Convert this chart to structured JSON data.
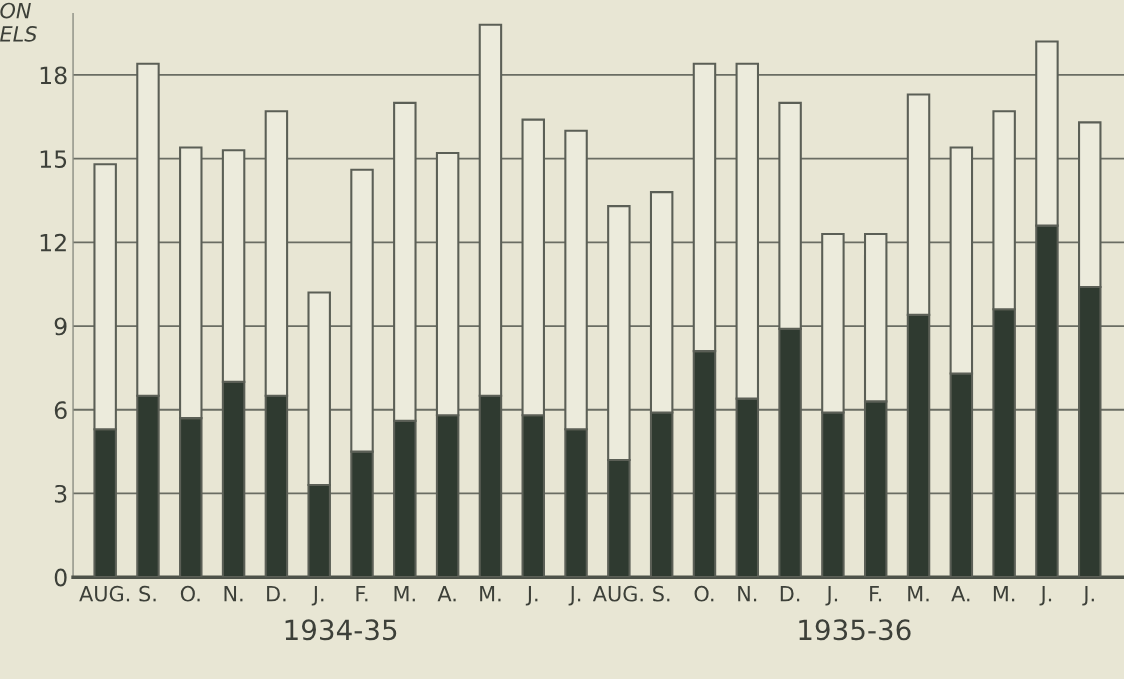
{
  "chart_data": {
    "type": "bar",
    "stacked": true,
    "ylabel": "ON\nELS",
    "categories": [
      "AUG.",
      "S.",
      "O.",
      "N.",
      "D.",
      "J.",
      "F.",
      "M.",
      "A.",
      "M.",
      "J.",
      "J.",
      "AUG.",
      "S.",
      "O.",
      "N.",
      "D.",
      "J.",
      "F.",
      "M.",
      "A.",
      "M.",
      "J.",
      "J."
    ],
    "series": [
      {
        "color": "#2f3a30",
        "values": [
          5.3,
          6.5,
          5.7,
          7.0,
          6.5,
          3.3,
          4.5,
          5.6,
          5.8,
          6.5,
          5.8,
          5.3,
          4.2,
          5.9,
          8.1,
          6.4,
          8.9,
          5.9,
          6.3,
          9.4,
          7.3,
          9.6,
          12.6,
          10.4
        ]
      },
      {
        "color": "#ecebdc",
        "values": [
          9.5,
          11.9,
          9.7,
          8.3,
          10.2,
          6.9,
          10.1,
          11.4,
          9.4,
          13.3,
          10.6,
          10.7,
          9.1,
          7.9,
          10.3,
          12.0,
          8.1,
          6.4,
          6.0,
          7.9,
          8.1,
          7.1,
          6.6,
          5.9
        ]
      }
    ],
    "ylim": [
      0,
      20.2
    ],
    "yticks": [
      0,
      3,
      6,
      9,
      12,
      15,
      18
    ],
    "grid": "y",
    "annotations": [
      "1934-35",
      "1935-36"
    ]
  }
}
